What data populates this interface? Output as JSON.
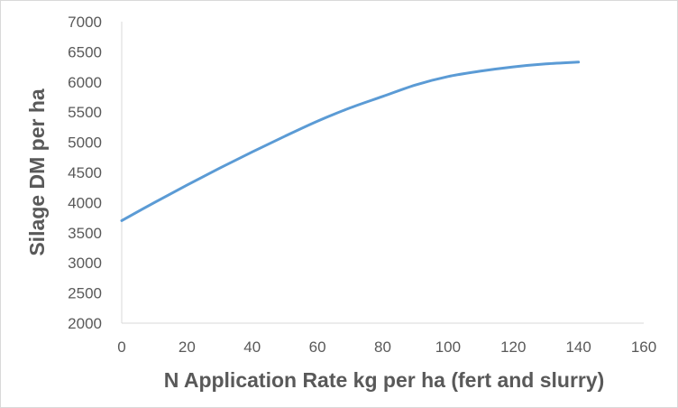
{
  "chart_data": {
    "type": "line",
    "title": "",
    "xlabel": "N Application Rate kg per ha (fert and slurry)",
    "ylabel": "Silage DM per ha",
    "xlim": [
      0,
      160
    ],
    "ylim": [
      2000,
      7000
    ],
    "xticks": [
      0,
      20,
      40,
      60,
      80,
      100,
      120,
      140,
      160
    ],
    "yticks": [
      2000,
      2500,
      3000,
      3500,
      4000,
      4500,
      5000,
      5500,
      6000,
      6500,
      7000
    ],
    "grid": false,
    "legend": "none",
    "series": [
      {
        "color": "#5b9bd5",
        "x": [
          0,
          10,
          20,
          30,
          40,
          50,
          60,
          70,
          80,
          90,
          100,
          110,
          120,
          130,
          140
        ],
        "y": [
          3700,
          4000,
          4290,
          4570,
          4840,
          5100,
          5350,
          5570,
          5760,
          5950,
          6090,
          6180,
          6250,
          6300,
          6330
        ]
      }
    ]
  }
}
